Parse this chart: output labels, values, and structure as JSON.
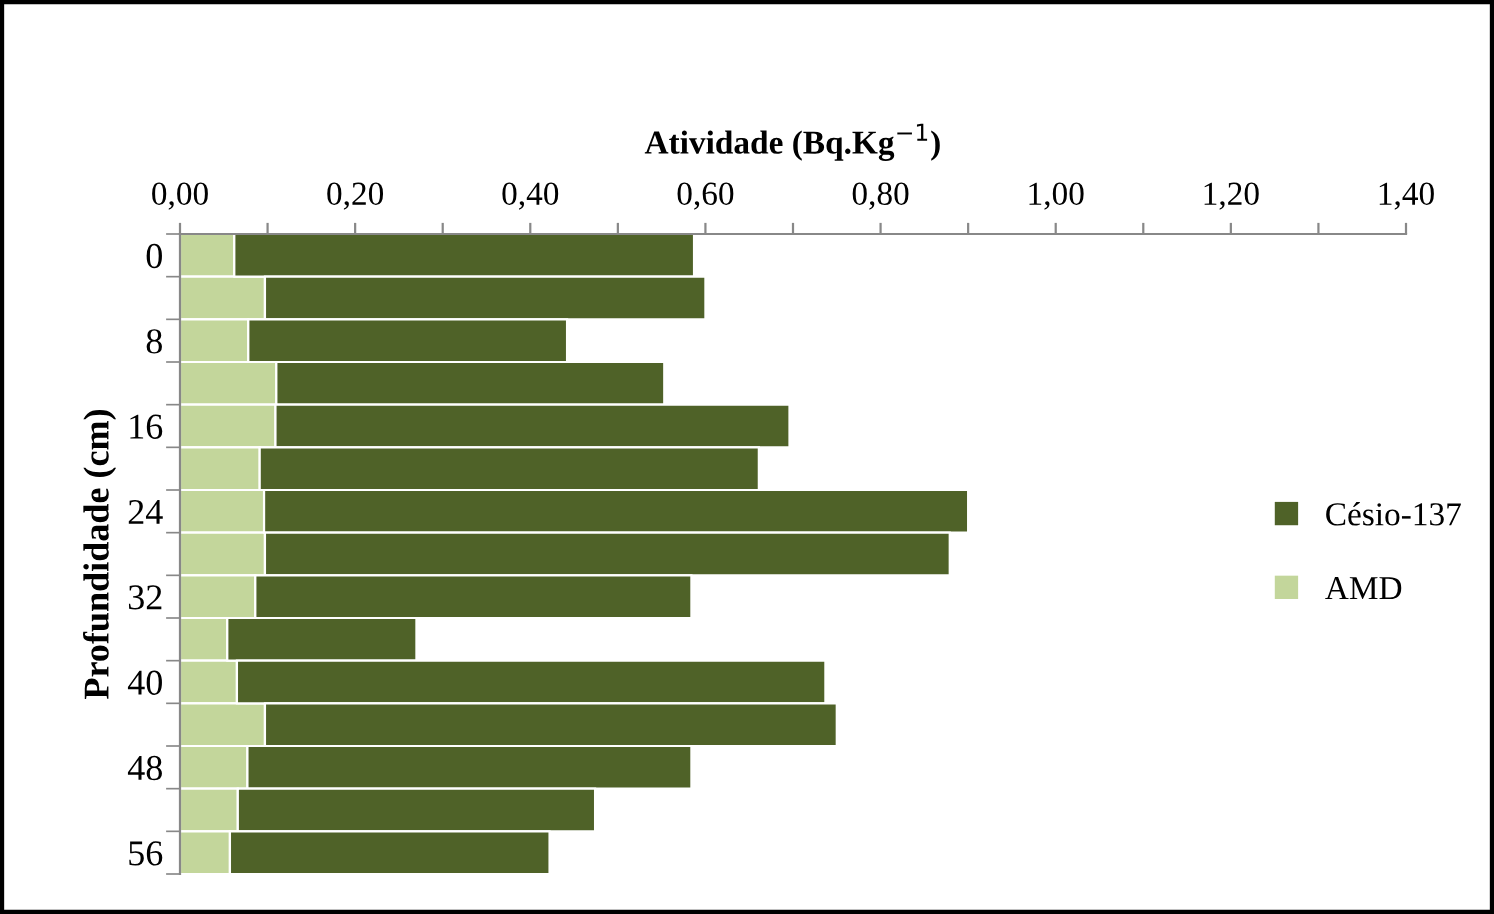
{
  "chart_data": {
    "type": "bar",
    "orientation": "horizontal",
    "stacked": true,
    "xlabel": "Atividade (Bq.Kg$^{−1}$)",
    "ylabel": "Profundidade (cm)",
    "categories": [
      "0",
      null,
      "8",
      null,
      "16",
      null,
      "24",
      null,
      "32",
      null,
      "40",
      null,
      "48",
      null,
      "56"
    ],
    "series": [
      {
        "name": "AMD",
        "color": "#c3d69b",
        "values": [
          0.062,
          0.097,
          0.078,
          0.11,
          0.109,
          0.091,
          0.096,
          0.097,
          0.086,
          0.054,
          0.065,
          0.097,
          0.077,
          0.066,
          0.057
        ]
      },
      {
        "name": "Césio-137",
        "color": "#4f6228",
        "values": [
          0.525,
          0.503,
          0.364,
          0.443,
          0.587,
          0.57,
          0.804,
          0.782,
          0.498,
          0.216,
          0.672,
          0.653,
          0.507,
          0.408,
          0.365
        ]
      }
    ],
    "xlim": [
      0,
      1.4
    ],
    "xticks": [
      {
        "value": 0,
        "label": "0,00"
      },
      {
        "value": 0.1,
        "label": null
      },
      {
        "value": 0.2,
        "label": "0,20"
      },
      {
        "value": 0.3,
        "label": null
      },
      {
        "value": 0.4,
        "label": "0,40"
      },
      {
        "value": 0.5,
        "label": null
      },
      {
        "value": 0.6,
        "label": "0,60"
      },
      {
        "value": 0.7,
        "label": null
      },
      {
        "value": 0.8,
        "label": "0,80"
      },
      {
        "value": 0.9,
        "label": null
      },
      {
        "value": 1.0,
        "label": "1,00"
      },
      {
        "value": 1.1,
        "label": null
      },
      {
        "value": 1.2,
        "label": "1,20"
      },
      {
        "value": 1.3,
        "label": null
      },
      {
        "value": 1.4,
        "label": "1,40"
      }
    ],
    "grid": false,
    "legend": "right"
  }
}
